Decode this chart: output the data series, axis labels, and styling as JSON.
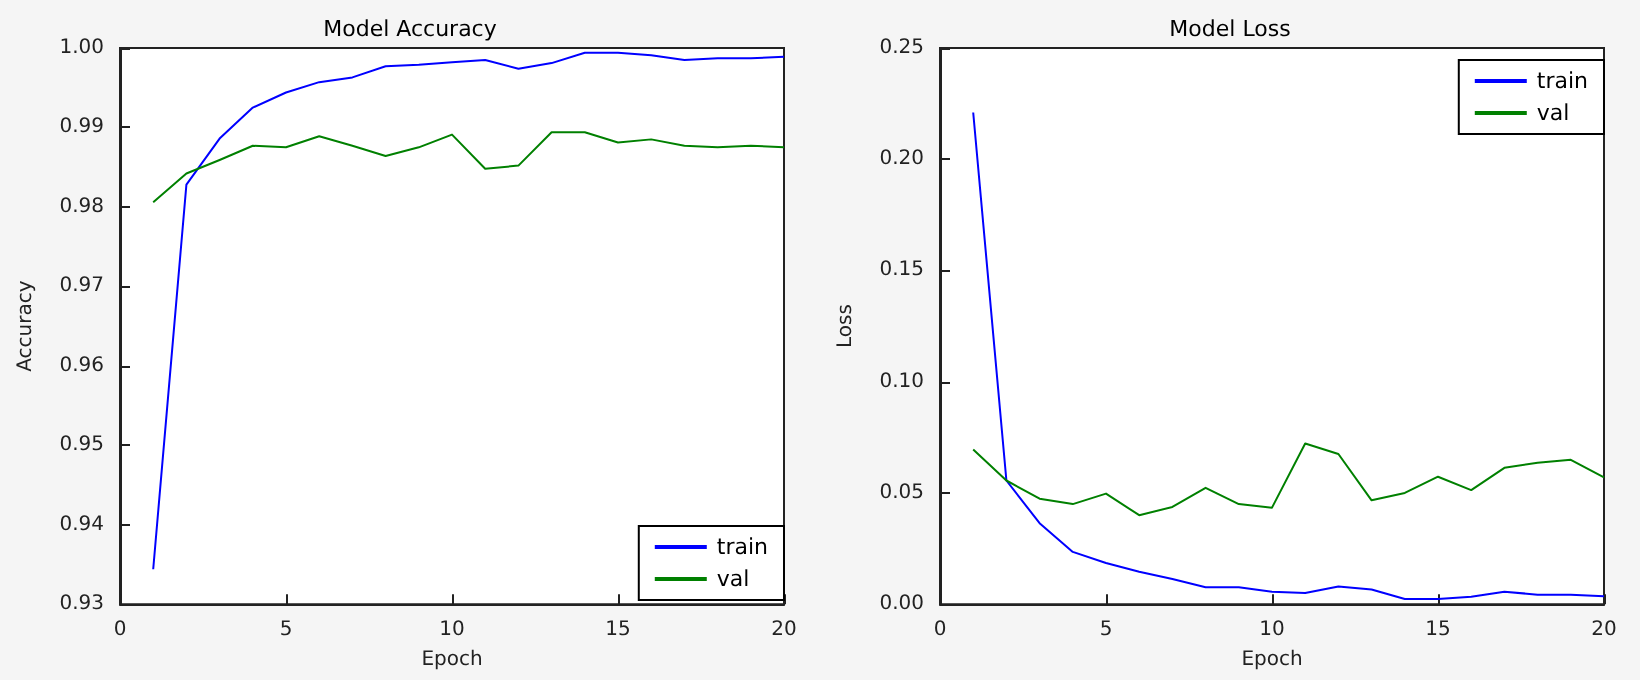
{
  "chart_data": [
    {
      "type": "line",
      "title": "Model Accuracy",
      "xlabel": "Epoch",
      "ylabel": "Accuracy",
      "x": [
        1,
        2,
        3,
        4,
        5,
        6,
        7,
        8,
        9,
        10,
        11,
        12,
        13,
        14,
        15,
        16,
        17,
        18,
        19,
        20
      ],
      "xlim": [
        0,
        20
      ],
      "xticks": [
        0,
        5,
        10,
        15,
        20
      ],
      "ylim": [
        0.93,
        1.0
      ],
      "yticks": [
        {
          "value": 0.93,
          "label": "0.93"
        },
        {
          "value": 0.94,
          "label": "0.94"
        },
        {
          "value": 0.95,
          "label": "0.95"
        },
        {
          "value": 0.96,
          "label": "0.96"
        },
        {
          "value": 0.97,
          "label": "0.97"
        },
        {
          "value": 0.98,
          "label": "0.98"
        },
        {
          "value": 0.99,
          "label": "0.99"
        },
        {
          "value": 1.0,
          "label": "1.00"
        }
      ],
      "grid": false,
      "legend": "bottom right",
      "marker": "none",
      "line_style": "solid",
      "series": [
        {
          "name": "train",
          "color": "#0000ff",
          "values": [
            0.9344,
            0.9828,
            0.9886,
            0.9925,
            0.9944,
            0.9957,
            0.9963,
            0.9977,
            0.9979,
            0.9982,
            0.9985,
            0.9974,
            0.9981,
            0.9994,
            0.9994,
            0.9991,
            0.9985,
            0.9987,
            0.9987,
            0.9989
          ]
        },
        {
          "name": "val",
          "color": "#008000",
          "values": [
            0.9806,
            0.9842,
            0.9859,
            0.9877,
            0.9875,
            0.9889,
            0.9877,
            0.9864,
            0.9875,
            0.9891,
            0.9848,
            0.9852,
            0.9894,
            0.9894,
            0.9881,
            0.9885,
            0.9877,
            0.9875,
            0.9877,
            0.9875
          ]
        }
      ]
    },
    {
      "type": "line",
      "title": "Model Loss",
      "xlabel": "Epoch",
      "ylabel": "Loss",
      "x": [
        1,
        2,
        3,
        4,
        5,
        6,
        7,
        8,
        9,
        10,
        11,
        12,
        13,
        14,
        15,
        16,
        17,
        18,
        19,
        20
      ],
      "xlim": [
        0,
        20
      ],
      "xticks": [
        0,
        5,
        10,
        15,
        20
      ],
      "ylim": [
        0,
        0.25
      ],
      "yticks": [
        {
          "value": 0,
          "label": "0.00"
        },
        {
          "value": 0.05,
          "label": "0.05"
        },
        {
          "value": 0.1,
          "label": "0.10"
        },
        {
          "value": 0.15,
          "label": "0.15"
        },
        {
          "value": 0.2,
          "label": "0.20"
        },
        {
          "value": 0.25,
          "label": "0.25"
        }
      ],
      "grid": false,
      "legend": "top right",
      "marker": "none",
      "line_style": "solid",
      "series": [
        {
          "name": "train",
          "color": "#0000ff",
          "values": [
            0.221,
            0.0556,
            0.0364,
            0.0235,
            0.0185,
            0.0146,
            0.0113,
            0.0076,
            0.0076,
            0.0056,
            0.005,
            0.008,
            0.0066,
            0.0023,
            0.0023,
            0.0033,
            0.0056,
            0.0043,
            0.0043,
            0.0036
          ]
        },
        {
          "name": "val",
          "color": "#008000",
          "values": [
            0.0695,
            0.0556,
            0.0474,
            0.045,
            0.0497,
            0.04,
            0.0437,
            0.0523,
            0.045,
            0.0434,
            0.0722,
            0.0675,
            0.0467,
            0.05,
            0.0573,
            0.0513,
            0.0613,
            0.0636,
            0.0649,
            0.057
          ]
        }
      ]
    }
  ]
}
